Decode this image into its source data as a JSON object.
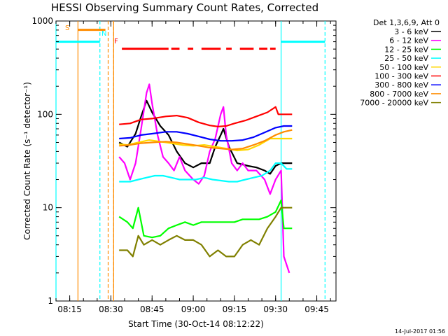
{
  "chart_data": {
    "type": "line",
    "title": "HESSI Observing Summary Count Rates, Corrected",
    "xlabel": "Start Time (30-Oct-14 08:12:22)",
    "ylabel": "Corrected Count Rate (s⁻¹ detector⁻¹)",
    "xlim": [
      "08:10",
      "09:52"
    ],
    "ylim": [
      1,
      1000
    ],
    "yscale": "log",
    "grid": false,
    "legend_position": "right",
    "x_ticks": [
      "08:15",
      "08:30",
      "08:45",
      "09:00",
      "09:15",
      "09:30",
      "09:45"
    ],
    "y_ticks": [
      "1",
      "10",
      "100",
      "1000"
    ],
    "legend_header": "Det 1,3,6,9, Att 0",
    "date_stamp": "14-Jul-2017 01:56",
    "series": [
      {
        "name": "3 - 6 keV",
        "color": "#000000",
        "points": [
          [
            "08:33",
            50
          ],
          [
            "08:36",
            45
          ],
          [
            "08:39",
            62
          ],
          [
            "08:41",
            95
          ],
          [
            "08:43",
            140
          ],
          [
            "08:45",
            105
          ],
          [
            "08:48",
            75
          ],
          [
            "08:51",
            60
          ],
          [
            "08:54",
            40
          ],
          [
            "08:57",
            30
          ],
          [
            "09:00",
            27
          ],
          [
            "09:03",
            30
          ],
          [
            "09:06",
            30
          ],
          [
            "09:08",
            45
          ],
          [
            "09:10",
            60
          ],
          [
            "09:11",
            70
          ],
          [
            "09:13",
            45
          ],
          [
            "09:16",
            30
          ],
          [
            "09:20",
            28
          ],
          [
            "09:23",
            27
          ],
          [
            "09:26",
            25
          ],
          [
            "09:28",
            23
          ],
          [
            "09:30",
            28
          ],
          [
            "09:32",
            30
          ],
          [
            "09:34",
            30
          ],
          [
            "09:36",
            30
          ]
        ]
      },
      {
        "name": "6 - 12 keV",
        "color": "#ff00ff",
        "points": [
          [
            "08:33",
            35
          ],
          [
            "08:35",
            30
          ],
          [
            "08:37",
            20
          ],
          [
            "08:39",
            30
          ],
          [
            "08:41",
            70
          ],
          [
            "08:43",
            170
          ],
          [
            "08:44",
            210
          ],
          [
            "08:45",
            130
          ],
          [
            "08:47",
            60
          ],
          [
            "08:49",
            35
          ],
          [
            "08:51",
            30
          ],
          [
            "08:53",
            25
          ],
          [
            "08:55",
            35
          ],
          [
            "08:57",
            25
          ],
          [
            "09:00",
            20
          ],
          [
            "09:02",
            18
          ],
          [
            "09:04",
            22
          ],
          [
            "09:06",
            40
          ],
          [
            "09:08",
            55
          ],
          [
            "09:10",
            100
          ],
          [
            "09:11",
            120
          ],
          [
            "09:12",
            60
          ],
          [
            "09:14",
            30
          ],
          [
            "09:16",
            25
          ],
          [
            "09:18",
            30
          ],
          [
            "09:20",
            25
          ],
          [
            "09:23",
            25
          ],
          [
            "09:26",
            20
          ],
          [
            "09:28",
            14
          ],
          [
            "09:30",
            20
          ],
          [
            "09:32",
            25
          ],
          [
            "09:33",
            3
          ],
          [
            "09:35",
            2
          ]
        ]
      },
      {
        "name": "12 - 25 keV",
        "color": "#00ff00",
        "points": [
          [
            "08:33",
            8
          ],
          [
            "08:36",
            7
          ],
          [
            "08:38",
            6
          ],
          [
            "08:40",
            10
          ],
          [
            "08:42",
            5
          ],
          [
            "08:45",
            4.8
          ],
          [
            "08:48",
            5
          ],
          [
            "08:51",
            6
          ],
          [
            "08:54",
            6.5
          ],
          [
            "08:57",
            7
          ],
          [
            "09:00",
            6.5
          ],
          [
            "09:03",
            7
          ],
          [
            "09:06",
            7
          ],
          [
            "09:09",
            7
          ],
          [
            "09:12",
            7
          ],
          [
            "09:15",
            7
          ],
          [
            "09:18",
            7.5
          ],
          [
            "09:21",
            7.5
          ],
          [
            "09:24",
            7.5
          ],
          [
            "09:27",
            8
          ],
          [
            "09:30",
            9
          ],
          [
            "09:32",
            12
          ],
          [
            "09:33",
            6
          ],
          [
            "09:36",
            6
          ]
        ]
      },
      {
        "name": "25 - 50 keV",
        "color": "#00ffff",
        "points": [
          [
            "08:33",
            19
          ],
          [
            "08:37",
            19
          ],
          [
            "08:40",
            20
          ],
          [
            "08:43",
            21
          ],
          [
            "08:46",
            22
          ],
          [
            "08:49",
            22
          ],
          [
            "08:52",
            21
          ],
          [
            "08:55",
            20
          ],
          [
            "08:58",
            20
          ],
          [
            "09:01",
            20
          ],
          [
            "09:04",
            21
          ],
          [
            "09:07",
            20
          ],
          [
            "09:10",
            19.5
          ],
          [
            "09:13",
            19
          ],
          [
            "09:16",
            19
          ],
          [
            "09:19",
            20
          ],
          [
            "09:22",
            21
          ],
          [
            "09:25",
            22
          ],
          [
            "09:28",
            25
          ],
          [
            "09:30",
            30
          ],
          [
            "09:32",
            30
          ],
          [
            "09:34",
            26
          ],
          [
            "09:36",
            26
          ]
        ]
      },
      {
        "name": "50 - 100 keV",
        "color": "#ffd700",
        "points": [
          [
            "08:33",
            48
          ],
          [
            "08:36",
            47
          ],
          [
            "08:40",
            50
          ],
          [
            "08:44",
            53
          ],
          [
            "08:48",
            51
          ],
          [
            "08:52",
            49
          ],
          [
            "08:56",
            47
          ],
          [
            "09:00",
            46
          ],
          [
            "09:04",
            47
          ],
          [
            "09:08",
            45
          ],
          [
            "09:12",
            43
          ],
          [
            "09:16",
            41
          ],
          [
            "09:20",
            42
          ],
          [
            "09:24",
            47
          ],
          [
            "09:28",
            55
          ],
          [
            "09:30",
            55
          ],
          [
            "09:33",
            55
          ],
          [
            "09:36",
            55
          ]
        ]
      },
      {
        "name": "100 - 300 keV",
        "color": "#ff0000",
        "points": [
          [
            "08:33",
            78
          ],
          [
            "08:37",
            80
          ],
          [
            "08:41",
            88
          ],
          [
            "08:45",
            90
          ],
          [
            "08:50",
            95
          ],
          [
            "08:54",
            97
          ],
          [
            "08:58",
            92
          ],
          [
            "09:02",
            82
          ],
          [
            "09:06",
            76
          ],
          [
            "09:09",
            74
          ],
          [
            "09:12",
            75
          ],
          [
            "09:15",
            80
          ],
          [
            "09:19",
            86
          ],
          [
            "09:23",
            95
          ],
          [
            "09:27",
            105
          ],
          [
            "09:30",
            120
          ],
          [
            "09:31",
            100
          ],
          [
            "09:33",
            100
          ],
          [
            "09:36",
            100
          ]
        ]
      },
      {
        "name": "300 - 800 keV",
        "color": "#0000ff",
        "points": [
          [
            "08:33",
            55
          ],
          [
            "08:37",
            56
          ],
          [
            "08:41",
            60
          ],
          [
            "08:45",
            62
          ],
          [
            "08:50",
            65
          ],
          [
            "08:54",
            65
          ],
          [
            "08:58",
            62
          ],
          [
            "09:02",
            58
          ],
          [
            "09:06",
            54
          ],
          [
            "09:10",
            52
          ],
          [
            "09:14",
            52
          ],
          [
            "09:18",
            53
          ],
          [
            "09:22",
            57
          ],
          [
            "09:26",
            64
          ],
          [
            "09:30",
            72
          ],
          [
            "09:33",
            75
          ],
          [
            "09:36",
            75
          ]
        ]
      },
      {
        "name": "800 - 7000 keV",
        "color": "#ff8c00",
        "points": [
          [
            "08:33",
            46
          ],
          [
            "08:37",
            47
          ],
          [
            "08:41",
            49
          ],
          [
            "08:45",
            50
          ],
          [
            "08:50",
            51
          ],
          [
            "08:54",
            50
          ],
          [
            "08:58",
            48
          ],
          [
            "09:02",
            46
          ],
          [
            "09:06",
            44
          ],
          [
            "09:10",
            43
          ],
          [
            "09:14",
            42
          ],
          [
            "09:18",
            43
          ],
          [
            "09:22",
            47
          ],
          [
            "09:26",
            52
          ],
          [
            "09:30",
            60
          ],
          [
            "09:33",
            65
          ],
          [
            "09:36",
            68
          ]
        ]
      },
      {
        "name": "7000 - 20000 keV",
        "color": "#808000",
        "points": [
          [
            "08:33",
            3.5
          ],
          [
            "08:36",
            3.5
          ],
          [
            "08:38",
            3
          ],
          [
            "08:40",
            5
          ],
          [
            "08:42",
            4
          ],
          [
            "08:45",
            4.5
          ],
          [
            "08:48",
            4
          ],
          [
            "08:51",
            4.5
          ],
          [
            "08:54",
            5
          ],
          [
            "08:57",
            4.5
          ],
          [
            "09:00",
            4.5
          ],
          [
            "09:03",
            4
          ],
          [
            "09:06",
            3
          ],
          [
            "09:09",
            3.5
          ],
          [
            "09:12",
            3
          ],
          [
            "09:15",
            3
          ],
          [
            "09:18",
            4
          ],
          [
            "09:21",
            4.5
          ],
          [
            "09:24",
            4
          ],
          [
            "09:27",
            6
          ],
          [
            "09:30",
            8
          ],
          [
            "09:32",
            10
          ],
          [
            "09:34",
            10
          ],
          [
            "09:36",
            10
          ]
        ]
      }
    ],
    "annotations": {
      "saa_label": "S",
      "night_label": "N",
      "flare_label": "F",
      "saa_color": "#ff8c00",
      "night_color": "#00ffff",
      "flare_color": "#ff0000",
      "attenuator_level": 600,
      "annotation_level": 700,
      "saa_interval": [
        "08:18",
        "08:28"
      ],
      "night_intervals": [
        [
          "08:10",
          "08:26"
        ],
        [
          "09:32",
          "09:48"
        ]
      ],
      "flare_segments": [
        [
          "08:34",
          "08:51"
        ],
        [
          "08:52",
          "08:55"
        ],
        [
          "08:58",
          "09:00"
        ],
        [
          "09:03",
          "09:10"
        ],
        [
          "09:12",
          "09:14"
        ],
        [
          "09:17",
          "09:22"
        ],
        [
          "09:24",
          "09:27"
        ],
        [
          "09:28",
          "09:30"
        ]
      ],
      "saa_lines": [
        "08:18",
        "08:31"
      ],
      "saa_dashed_lines": [
        "08:29",
        "08:31"
      ],
      "night_lines": [
        "08:10",
        "09:32"
      ],
      "night_dashed_lines": [
        "08:26",
        "09:48"
      ]
    }
  }
}
